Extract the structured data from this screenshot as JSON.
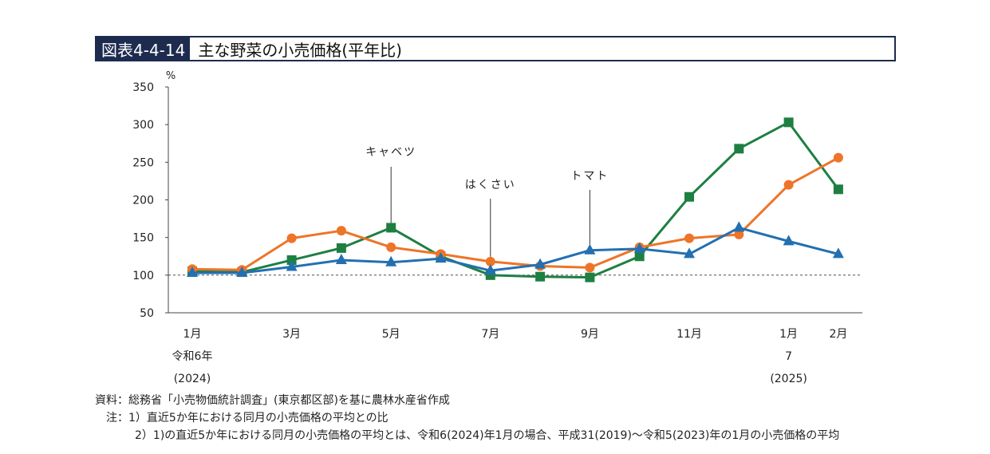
{
  "header": {
    "figure_code": "図表4-4-14",
    "title": "主な野菜の小売価格(平年比)"
  },
  "chart_data": {
    "type": "line",
    "y_unit": "%",
    "ylim": [
      50,
      350
    ],
    "yticks": [
      50,
      100,
      150,
      200,
      250,
      300,
      350
    ],
    "reference_line": 100,
    "x": [
      "2024-01",
      "2024-02",
      "2024-03",
      "2024-04",
      "2024-05",
      "2024-06",
      "2024-07",
      "2024-08",
      "2024-09",
      "2024-10",
      "2024-11",
      "2024-12",
      "2025-01",
      "2025-02"
    ],
    "xtick_labels": [
      {
        "index": 0,
        "lines": [
          "1月",
          "令和6年",
          "(2024)"
        ]
      },
      {
        "index": 2,
        "lines": [
          "3月"
        ]
      },
      {
        "index": 4,
        "lines": [
          "5月"
        ]
      },
      {
        "index": 6,
        "lines": [
          "7月"
        ]
      },
      {
        "index": 8,
        "lines": [
          "9月"
        ]
      },
      {
        "index": 10,
        "lines": [
          "11月"
        ]
      },
      {
        "index": 12,
        "lines": [
          "1月",
          "7",
          "(2025)"
        ]
      },
      {
        "index": 13,
        "lines": [
          "2月"
        ]
      }
    ],
    "series": [
      {
        "name": "キャベツ",
        "color": "#1e7f42",
        "marker": "square",
        "values": [
          105,
          104,
          120,
          136,
          163,
          125,
          100,
          98,
          97,
          125,
          204,
          268,
          303,
          214
        ]
      },
      {
        "name": "はくさい",
        "color": "#ee7428",
        "marker": "circle",
        "values": [
          108,
          107,
          149,
          159,
          137,
          128,
          118,
          112,
          110,
          137,
          149,
          154,
          220,
          256
        ]
      },
      {
        "name": "トマト",
        "color": "#2270b1",
        "marker": "triangle",
        "values": [
          103,
          103,
          111,
          120,
          117,
          122,
          106,
          114,
          133,
          135,
          128,
          163,
          145,
          128
        ]
      }
    ],
    "annotations": [
      {
        "label": "キャベツ",
        "series": 0,
        "index": 4
      },
      {
        "label": "はくさい",
        "series": 1,
        "index": 6
      },
      {
        "label": "トマト",
        "series": 2,
        "index": 8
      }
    ]
  },
  "notes": {
    "source": "資料：総務省「小売物価統計調査」(東京都区部)を基に農林水産省作成",
    "note1": "注：1）直近5か年における同月の小売価格の平均との比",
    "note2": "2）1)の直近5か年における同月の小売価格の平均とは、令和6(2024)年1月の場合、平成31(2019)～令和5(2023)年の1月の小売価格の平均"
  }
}
